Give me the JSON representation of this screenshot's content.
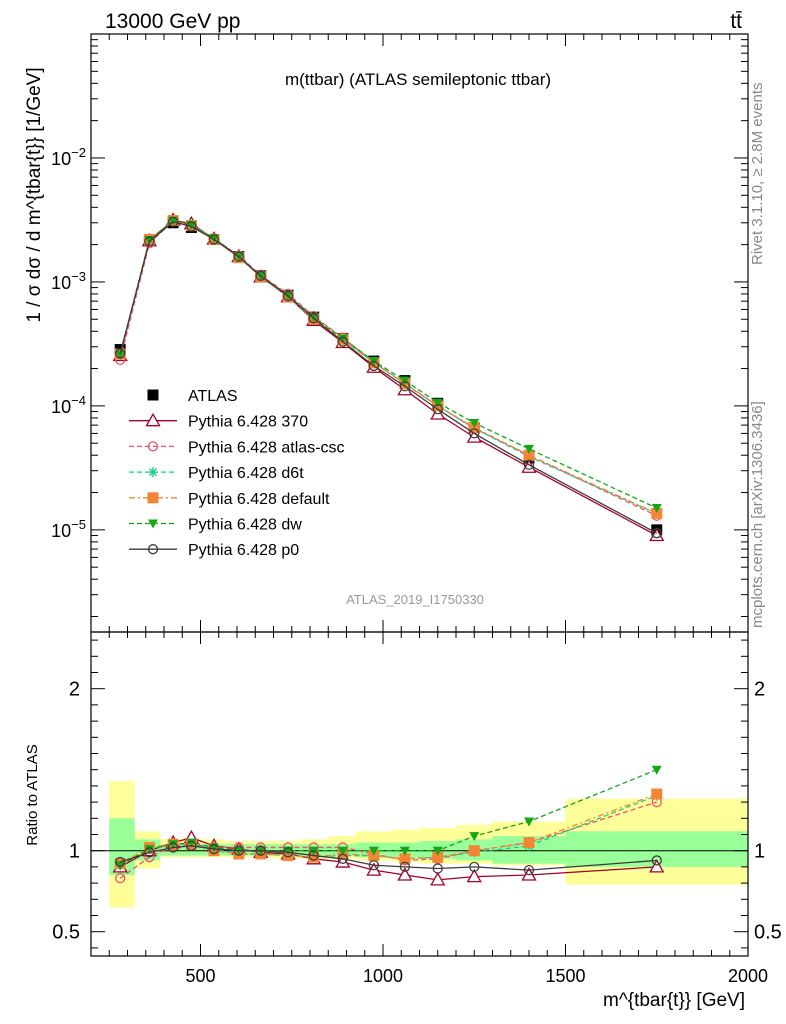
{
  "header": {
    "left": "13000 GeV pp",
    "right": "tt̄"
  },
  "side": {
    "rivet": "Rivet 3.1.10, ≥ 2.8M events",
    "mcplots": "mcplots.cern.ch [arXiv:1306.3436]"
  },
  "chart_data": [
    {
      "type": "line",
      "title": "m(ttbar) (ATLAS semileptonic ttbar)",
      "watermark": "ATLAS_2019_I1750330",
      "ylabel": "1 / σ dσ / d m^{tbar{t}} [1/GeV]",
      "yscale": "log",
      "ylim": [
        1.5e-06,
        0.1
      ],
      "xlim": [
        200,
        2000
      ],
      "ytick_labels": [
        "10^-5",
        "10^-4",
        "10^-3",
        "10^-2"
      ],
      "x": [
        280,
        360,
        425,
        475,
        537,
        605,
        665,
        740,
        810,
        890,
        975,
        1060,
        1150,
        1250,
        1400,
        1750
      ],
      "series": [
        {
          "name": "ATLAS",
          "color": "#000000",
          "marker": "square",
          "values": [
            0.000285,
            0.00215,
            0.003,
            0.00275,
            0.0022,
            0.0016,
            0.00112,
            0.00078,
            0.00052,
            0.00035,
            0.00023,
            0.00016,
            0.000105,
            6.7e-05,
            3.8e-05,
            1e-05
          ]
        },
        {
          "name": "Pythia 6.428 370",
          "color": "#a50026",
          "marker": "triangle-open",
          "values": [
            0.000255,
            0.00215,
            0.00315,
            0.00295,
            0.00222,
            0.0016,
            0.0011,
            0.00076,
            0.00049,
            0.000325,
            0.000205,
            0.000135,
            8.6e-05,
            5.6e-05,
            3.2e-05,
            9e-06
          ]
        },
        {
          "name": "Pythia 6.428 atlas-csc",
          "color": "#f0506e",
          "marker": "circle-open",
          "values": [
            0.000235,
            0.00205,
            0.0031,
            0.00285,
            0.00225,
            0.00163,
            0.00113,
            0.0008,
            0.00053,
            0.000355,
            0.000225,
            0.00015,
            0.0001,
            6.6e-05,
            4e-05,
            1.3e-05
          ]
        },
        {
          "name": "Pythia 6.428 d6t",
          "color": "#1dcc8c",
          "marker": "star",
          "values": [
            0.00026,
            0.00218,
            0.00312,
            0.00287,
            0.00222,
            0.00157,
            0.0011,
            0.00076,
            0.0005,
            0.00034,
            0.000225,
            0.000152,
            0.0001,
            6.6e-05,
            3.9e-05,
            1.35e-05
          ]
        },
        {
          "name": "Pythia 6.428 default",
          "color": "#f58535",
          "marker": "square",
          "values": [
            0.000262,
            0.0022,
            0.00313,
            0.00285,
            0.0022,
            0.00157,
            0.0011,
            0.00076,
            0.0005,
            0.000345,
            0.000222,
            0.000152,
            0.0001,
            6.7e-05,
            4e-05,
            1.36e-05
          ]
        },
        {
          "name": "Pythia 6.428 dw",
          "color": "#15a815",
          "marker": "triangle-down",
          "values": [
            0.00026,
            0.00218,
            0.00312,
            0.00288,
            0.00225,
            0.0016,
            0.00112,
            0.00078,
            0.00052,
            0.00035,
            0.00023,
            0.00016,
            0.000106,
            7.3e-05,
            4.5e-05,
            1.5e-05
          ]
        },
        {
          "name": "Pythia 6.428 p0",
          "color": "#3c3c3c",
          "marker": "circle-open",
          "values": [
            0.000265,
            0.00212,
            0.00305,
            0.0028,
            0.0022,
            0.0016,
            0.00112,
            0.00077,
            0.00051,
            0.00033,
            0.00021,
            0.000144,
            9.4e-05,
            6e-05,
            3.35e-05,
            9.4e-06
          ]
        }
      ]
    },
    {
      "type": "line",
      "ylabel": "Ratio to ATLAS",
      "xlabel": "m^{tbar{t}} [GeV]",
      "xlim": [
        200,
        2000
      ],
      "ylim": [
        0.35,
        2.35
      ],
      "xtick_labels": [
        "500",
        "1000",
        "1500",
        "2000"
      ],
      "ytick_labels": [
        "0.5",
        "1",
        "2"
      ],
      "x": [
        280,
        360,
        425,
        475,
        537,
        605,
        665,
        740,
        810,
        890,
        975,
        1060,
        1150,
        1250,
        1400,
        1750
      ],
      "bands": {
        "bin_edges": [
          250,
          320,
          390,
          450,
          500,
          565,
          635,
          700,
          775,
          850,
          925,
          1025,
          1100,
          1200,
          1300,
          1500,
          2000
        ],
        "stat": [
          [
            0.85,
            1.2
          ],
          [
            0.94,
            1.07
          ],
          [
            0.97,
            1.04
          ],
          [
            0.97,
            1.04
          ],
          [
            0.97,
            1.04
          ],
          [
            0.97,
            1.04
          ],
          [
            0.97,
            1.04
          ],
          [
            0.97,
            1.04
          ],
          [
            0.97,
            1.04
          ],
          [
            0.97,
            1.04
          ],
          [
            0.96,
            1.05
          ],
          [
            0.96,
            1.05
          ],
          [
            0.95,
            1.06
          ],
          [
            0.94,
            1.07
          ],
          [
            0.92,
            1.09
          ],
          [
            0.9,
            1.12
          ]
        ],
        "total": [
          [
            0.65,
            1.43
          ],
          [
            0.89,
            1.12
          ],
          [
            0.96,
            1.07
          ],
          [
            0.96,
            1.07
          ],
          [
            0.96,
            1.07
          ],
          [
            0.96,
            1.06
          ],
          [
            0.96,
            1.06
          ],
          [
            0.95,
            1.06
          ],
          [
            0.95,
            1.07
          ],
          [
            0.95,
            1.09
          ],
          [
            0.94,
            1.12
          ],
          [
            0.93,
            1.13
          ],
          [
            0.92,
            1.14
          ],
          [
            0.92,
            1.16
          ],
          [
            0.91,
            1.18
          ],
          [
            0.79,
            1.32
          ]
        ]
      },
      "series": [
        {
          "name": "Pythia 6.428 370",
          "color": "#a50026",
          "marker": "triangle-open",
          "values": [
            0.9,
            1.0,
            1.05,
            1.08,
            1.03,
            1.01,
            0.99,
            0.98,
            0.95,
            0.93,
            0.88,
            0.85,
            0.82,
            0.84,
            0.85,
            0.9
          ]
        },
        {
          "name": "Pythia 6.428 atlas-csc",
          "color": "#f0506e",
          "marker": "circle-open",
          "values": [
            0.83,
            0.96,
            1.03,
            1.04,
            1.02,
            1.02,
            1.02,
            1.02,
            1.02,
            1.02,
            0.98,
            0.94,
            0.95,
            1.0,
            1.05,
            1.3
          ]
        },
        {
          "name": "Pythia 6.428 d6t",
          "color": "#1dcc8c",
          "marker": "star",
          "values": [
            0.91,
            1.01,
            1.04,
            1.04,
            1.01,
            0.98,
            0.98,
            0.97,
            0.96,
            0.97,
            0.97,
            0.95,
            0.96,
            0.99,
            1.03,
            1.34
          ]
        },
        {
          "name": "Pythia 6.428 default",
          "color": "#f58535",
          "marker": "square",
          "values": [
            0.92,
            1.02,
            1.04,
            1.04,
            1.0,
            0.98,
            0.98,
            0.97,
            0.96,
            0.98,
            0.97,
            0.95,
            0.96,
            1.0,
            1.05,
            1.35
          ]
        },
        {
          "name": "Pythia 6.428 dw",
          "color": "#15a815",
          "marker": "triangle-down",
          "values": [
            0.91,
            1.01,
            1.04,
            1.05,
            1.02,
            1.0,
            1.0,
            1.0,
            1.0,
            1.0,
            1.0,
            1.0,
            1.0,
            1.09,
            1.18,
            1.5
          ]
        },
        {
          "name": "Pythia 6.428 p0",
          "color": "#3c3c3c",
          "marker": "circle-open",
          "values": [
            0.93,
            0.99,
            1.02,
            1.03,
            1.01,
            1.0,
            1.0,
            0.99,
            0.97,
            0.95,
            0.91,
            0.9,
            0.89,
            0.9,
            0.88,
            0.94
          ]
        }
      ]
    }
  ]
}
